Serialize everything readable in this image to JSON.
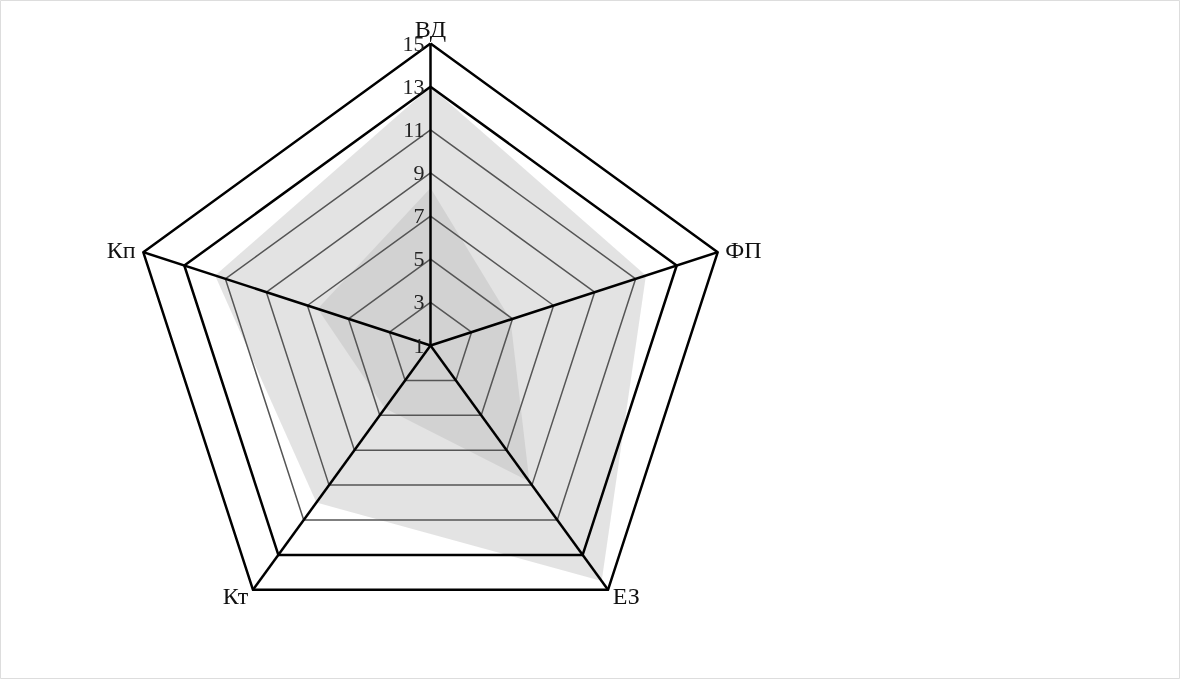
{
  "chart_data": {
    "type": "radar",
    "categories": [
      "ВД",
      "ФП",
      "ЕЗ",
      "Кт",
      "Кп"
    ],
    "ylim": [
      1,
      15
    ],
    "yticks": [
      1,
      3,
      5,
      7,
      9,
      11,
      13,
      15
    ],
    "grid": true,
    "series": [
      {
        "color": "#a6a6a6",
        "values": [
          8.3,
          4.9,
          8.8,
          4.6,
          6.5
        ]
      },
      {
        "color": "#d9d9d9",
        "values": [
          13,
          11.5,
          14.5,
          10,
          11.5
        ]
      }
    ]
  }
}
